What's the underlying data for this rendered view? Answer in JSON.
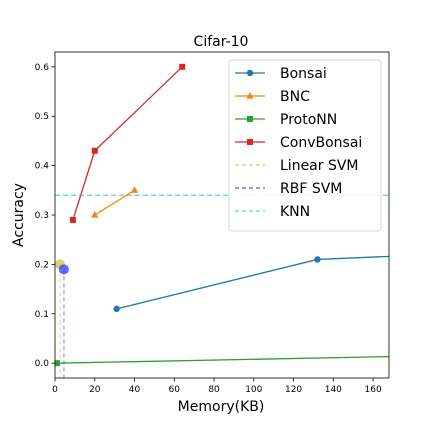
{
  "chart_data": {
    "type": "line",
    "title": "Cifar-10",
    "xlabel": "Memory(KB)",
    "ylabel": "Accuracy",
    "xlim": [
      0,
      168
    ],
    "ylim": [
      -0.03,
      0.63
    ],
    "xticks": [
      0,
      20,
      40,
      60,
      80,
      100,
      120,
      140,
      160
    ],
    "yticks": [
      0.0,
      0.1,
      0.2,
      0.3,
      0.4,
      0.5,
      0.6
    ],
    "xtick_labels": [
      "0",
      "20",
      "40",
      "60",
      "80",
      "100",
      "120",
      "140",
      "160"
    ],
    "ytick_labels": [
      "0.0",
      "0.1",
      "0.2",
      "0.3",
      "0.4",
      "0.5",
      "0.6"
    ],
    "grid": false,
    "legend_position": "top-right",
    "series": [
      {
        "name": "Bonsai",
        "color": "#1f77b4",
        "marker": "circle",
        "linestyle": "solid",
        "x": [
          31,
          132,
          190
        ],
        "y": [
          0.11,
          0.21,
          0.22
        ]
      },
      {
        "name": "BNC",
        "color": "#ff7f0e",
        "marker": "triangle",
        "linestyle": "solid",
        "x": [
          20,
          40
        ],
        "y": [
          0.3,
          0.35
        ]
      },
      {
        "name": "ProtoNN",
        "color": "#2ca02c",
        "marker": "square",
        "linestyle": "solid",
        "x": [
          1,
          190
        ],
        "y": [
          0.0,
          0.015
        ]
      },
      {
        "name": "ConvBonsai",
        "color": "#d62728",
        "marker": "square",
        "linestyle": "solid",
        "x": [
          9,
          20,
          64
        ],
        "y": [
          0.29,
          0.43,
          0.6
        ]
      },
      {
        "name": "Linear SVM",
        "color": "#bcbd22",
        "marker": "big-circle",
        "linestyle": "dashed",
        "x": [
          2.5
        ],
        "y": [
          0.2
        ]
      },
      {
        "name": "RBF SVM",
        "color": "#1a1aff",
        "marker": "big-circle",
        "linestyle": "dashed",
        "x": [
          4.5
        ],
        "y": [
          0.19
        ]
      },
      {
        "name": "KNN",
        "color": "#17becf",
        "marker": "none",
        "linestyle": "dashed",
        "hline": 0.34
      }
    ]
  }
}
